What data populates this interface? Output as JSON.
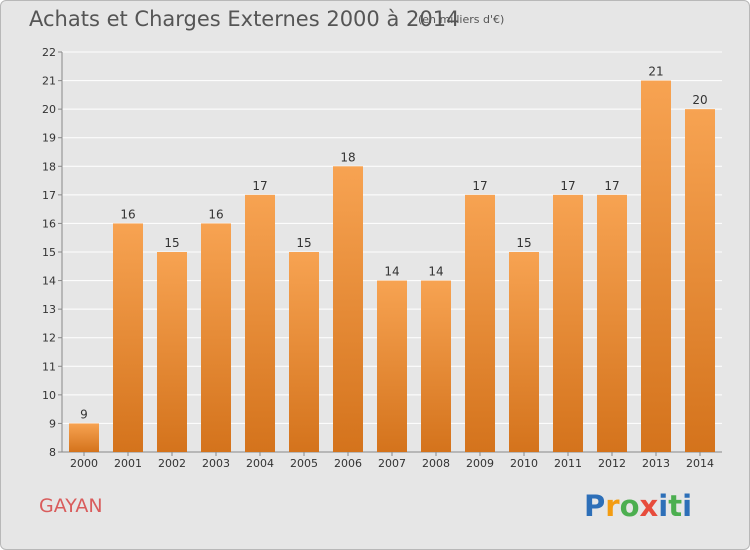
{
  "title": "Achats et Charges Externes 2000 à 2014",
  "unit": "(en milliers d'€)",
  "commune": "GAYAN",
  "logo": {
    "letters": [
      "P",
      "r",
      "o",
      "x",
      "i",
      "t",
      "i"
    ],
    "colors": [
      "#2d6fb8",
      "#f39c12",
      "#4caf50",
      "#e74c3c",
      "#2d6fb8",
      "#4caf50",
      "#2d6fb8"
    ]
  },
  "chart_data": {
    "type": "bar",
    "categories": [
      "2000",
      "2001",
      "2002",
      "2003",
      "2004",
      "2005",
      "2006",
      "2007",
      "2008",
      "2009",
      "2010",
      "2011",
      "2012",
      "2013",
      "2014"
    ],
    "values": [
      9,
      16,
      15,
      16,
      17,
      15,
      18,
      14,
      14,
      17,
      15,
      17,
      17,
      21,
      20
    ],
    "data_labels": [
      "9",
      "16",
      "15",
      "16",
      "17",
      "15",
      "18",
      "14",
      "14",
      "17",
      "15",
      "17",
      "17",
      "21",
      "20"
    ],
    "ylim": [
      8,
      22
    ],
    "yticks": [
      8,
      9,
      10,
      11,
      12,
      13,
      14,
      15,
      16,
      17,
      18,
      19,
      20,
      21,
      22
    ],
    "grid": true,
    "bar_color_top": "#f7a352",
    "bar_color_bottom": "#d4731c"
  }
}
